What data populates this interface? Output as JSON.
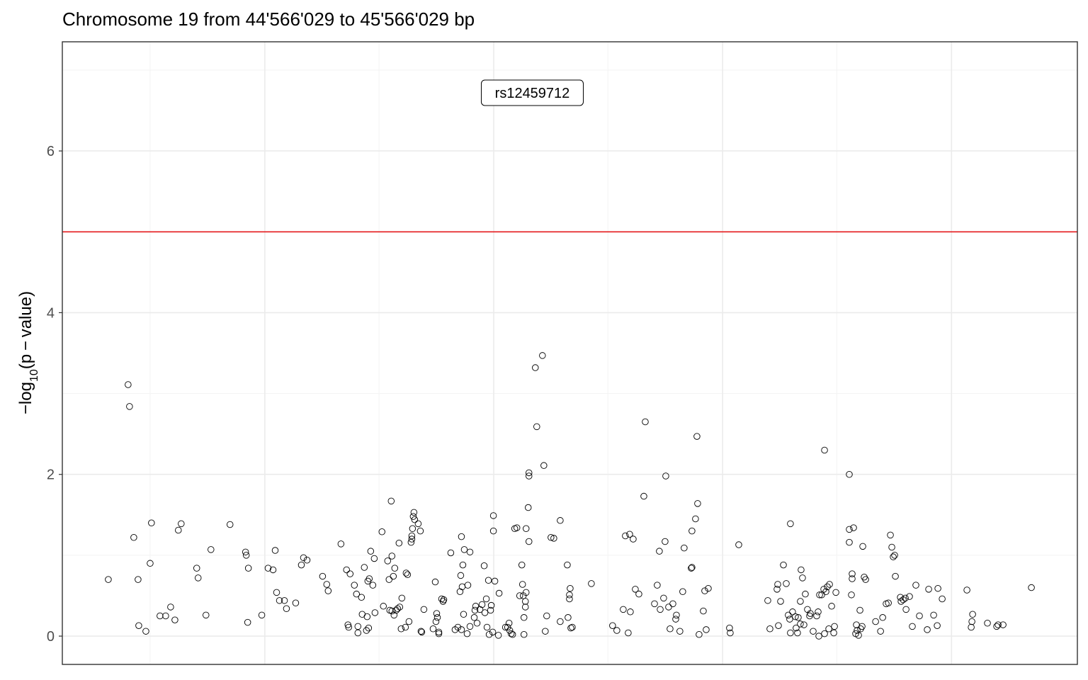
{
  "chart_data": {
    "type": "scatter",
    "title": "Chromosome 19 from 44'566'029 to 45'566'029 bp",
    "ylabel": "-log10(p-value)",
    "ylabel_parts": {
      "minus": "−",
      "log": "log",
      "base": "10",
      "arg": "(p − value)"
    },
    "xlabel": "",
    "xlim": [
      0,
      1000000
    ],
    "ylim": [
      -0.35,
      7.35
    ],
    "y_ticks": [
      0,
      2,
      4,
      6
    ],
    "x_gridlines": [
      86500,
      312000,
      537500,
      763000
    ],
    "x_major_gridlines": [
      199500,
      425000,
      650500,
      876000
    ],
    "grid": true,
    "threshold": {
      "y": 5,
      "color": "#e41a1c"
    },
    "annotation": {
      "label": "rs12459712",
      "x": 496500,
      "y": 7.0
    },
    "colors": {
      "panel_border": "#333333",
      "grid_major": "#ebebeb",
      "grid_minor": "#f3f3f3",
      "points": "#000000"
    },
    "points": [
      [
        45300,
        0.7
      ],
      [
        64800,
        3.11
      ],
      [
        66200,
        2.84
      ],
      [
        70400,
        1.22
      ],
      [
        74600,
        0.7
      ],
      [
        75300,
        0.13
      ],
      [
        82300,
        0.06
      ],
      [
        86500,
        0.9
      ],
      [
        87800,
        1.4
      ],
      [
        96200,
        0.25
      ],
      [
        101800,
        0.25
      ],
      [
        106700,
        0.36
      ],
      [
        110900,
        0.2
      ],
      [
        114300,
        1.31
      ],
      [
        117100,
        1.39
      ],
      [
        132400,
        0.84
      ],
      [
        133800,
        0.72
      ],
      [
        141500,
        0.26
      ],
      [
        146400,
        1.07
      ],
      [
        165200,
        1.38
      ],
      [
        180500,
        1.04
      ],
      [
        181200,
        1.0
      ],
      [
        182600,
        0.17
      ],
      [
        183300,
        0.84
      ],
      [
        196500,
        0.26
      ],
      [
        202700,
        0.84
      ],
      [
        207600,
        0.82
      ],
      [
        209700,
        1.06
      ],
      [
        211100,
        0.54
      ],
      [
        213900,
        0.44
      ],
      [
        218800,
        0.44
      ],
      [
        220800,
        0.34
      ],
      [
        229900,
        0.41
      ],
      [
        235500,
        0.88
      ],
      [
        237600,
        0.97
      ],
      [
        241100,
        0.94
      ],
      [
        256400,
        0.74
      ],
      [
        260500,
        0.64
      ],
      [
        261900,
        0.56
      ],
      [
        274500,
        1.14
      ],
      [
        280000,
        0.82
      ],
      [
        281400,
        0.14
      ],
      [
        282100,
        0.11
      ],
      [
        283500,
        0.77
      ],
      [
        287700,
        0.63
      ],
      [
        289800,
        0.52
      ],
      [
        291200,
        0.04
      ],
      [
        291200,
        0.12
      ],
      [
        294700,
        0.48
      ],
      [
        295400,
        0.27
      ],
      [
        297500,
        0.85
      ],
      [
        299600,
        0.07
      ],
      [
        300300,
        0.24
      ],
      [
        301000,
        0.68
      ],
      [
        301700,
        0.1
      ],
      [
        302400,
        0.71
      ],
      [
        303800,
        1.05
      ],
      [
        305900,
        0.63
      ],
      [
        307300,
        0.96
      ],
      [
        308000,
        0.29
      ],
      [
        314900,
        1.29
      ],
      [
        316300,
        0.37
      ],
      [
        320500,
        0.93
      ],
      [
        321900,
        0.7
      ],
      [
        322600,
        0.32
      ],
      [
        324000,
        1.67
      ],
      [
        324700,
        0.99
      ],
      [
        324700,
        0.31
      ],
      [
        326100,
        0.74
      ],
      [
        326800,
        0.26
      ],
      [
        327500,
        0.84
      ],
      [
        328900,
        0.32
      ],
      [
        330300,
        0.34
      ],
      [
        331700,
        1.15
      ],
      [
        332400,
        0.36
      ],
      [
        333800,
        0.09
      ],
      [
        334500,
        0.47
      ],
      [
        338000,
        0.11
      ],
      [
        338700,
        0.78
      ],
      [
        340100,
        0.76
      ],
      [
        341500,
        0.18
      ],
      [
        343600,
        1.16
      ],
      [
        344300,
        1.2
      ],
      [
        344300,
        1.24
      ],
      [
        345000,
        1.33
      ],
      [
        345700,
        1.48
      ],
      [
        346400,
        1.53
      ],
      [
        347100,
        1.44
      ],
      [
        350600,
        1.39
      ],
      [
        352700,
        1.3
      ],
      [
        353400,
        0.06
      ],
      [
        354100,
        0.05
      ],
      [
        356200,
        0.33
      ],
      [
        365300,
        0.09
      ],
      [
        367400,
        0.67
      ],
      [
        368100,
        0.18
      ],
      [
        368800,
        0.28
      ],
      [
        369500,
        0.23
      ],
      [
        370900,
        0.05
      ],
      [
        370900,
        0.03
      ],
      [
        373700,
        0.46
      ],
      [
        375100,
        0.43
      ],
      [
        375800,
        0.45
      ],
      [
        382700,
        1.03
      ],
      [
        386900,
        0.08
      ],
      [
        389700,
        0.11
      ],
      [
        391800,
        0.55
      ],
      [
        392500,
        0.75
      ],
      [
        393200,
        1.23
      ],
      [
        393200,
        0.08
      ],
      [
        393900,
        0.61
      ],
      [
        394600,
        0.88
      ],
      [
        395300,
        0.27
      ],
      [
        396000,
        1.07
      ],
      [
        398800,
        0.03
      ],
      [
        399500,
        0.63
      ],
      [
        401600,
        1.04
      ],
      [
        401600,
        0.12
      ],
      [
        405800,
        0.23
      ],
      [
        406500,
        0.32
      ],
      [
        407200,
        0.37
      ],
      [
        408600,
        0.16
      ],
      [
        411400,
        0.33
      ],
      [
        413500,
        0.39
      ],
      [
        415600,
        0.87
      ],
      [
        416300,
        0.29
      ],
      [
        417700,
        0.46
      ],
      [
        418400,
        0.11
      ],
      [
        419800,
        0.69
      ],
      [
        420500,
        0.02
      ],
      [
        421900,
        0.32
      ],
      [
        422600,
        0.38
      ],
      [
        424000,
        0.05
      ],
      [
        424700,
        1.49
      ],
      [
        424700,
        1.3
      ],
      [
        426100,
        0.68
      ],
      [
        429600,
        0.01
      ],
      [
        430300,
        0.53
      ],
      [
        436600,
        0.11
      ],
      [
        438700,
        0.11
      ],
      [
        440100,
        0.16
      ],
      [
        440800,
        0.07
      ],
      [
        442200,
        0.03
      ],
      [
        443600,
        0.02
      ],
      [
        445700,
        1.33
      ],
      [
        447800,
        1.34
      ],
      [
        450600,
        0.5
      ],
      [
        452700,
        0.88
      ],
      [
        453400,
        0.64
      ],
      [
        454100,
        0.5
      ],
      [
        454800,
        0.23
      ],
      [
        454800,
        0.02
      ],
      [
        456200,
        0.36
      ],
      [
        456200,
        0.43
      ],
      [
        456900,
        0.54
      ],
      [
        456900,
        1.33
      ],
      [
        459000,
        1.59
      ],
      [
        459700,
        1.17
      ],
      [
        459700,
        1.98
      ],
      [
        459700,
        2.02
      ],
      [
        466000,
        3.32
      ],
      [
        467400,
        2.59
      ],
      [
        473000,
        3.47
      ],
      [
        474400,
        2.11
      ],
      [
        475800,
        0.06
      ],
      [
        477200,
        0.25
      ],
      [
        481400,
        1.22
      ],
      [
        484200,
        1.21
      ],
      [
        490500,
        1.43
      ],
      [
        490500,
        0.18
      ],
      [
        497500,
        0.88
      ],
      [
        498200,
        0.23
      ],
      [
        499600,
        0.46
      ],
      [
        499600,
        0.51
      ],
      [
        500300,
        0.59
      ],
      [
        501000,
        0.1
      ],
      [
        502400,
        0.11
      ],
      [
        521200,
        0.65
      ],
      [
        542100,
        0.13
      ],
      [
        546300,
        0.07
      ],
      [
        552600,
        0.33
      ],
      [
        554700,
        1.24
      ],
      [
        557500,
        0.04
      ],
      [
        558900,
        1.26
      ],
      [
        559600,
        0.3
      ],
      [
        562400,
        1.2
      ],
      [
        564500,
        0.58
      ],
      [
        568000,
        0.52
      ],
      [
        572900,
        1.73
      ],
      [
        574300,
        2.65
      ],
      [
        583400,
        0.4
      ],
      [
        586100,
        0.63
      ],
      [
        588200,
        1.05
      ],
      [
        589000,
        0.33
      ],
      [
        592400,
        0.47
      ],
      [
        593800,
        1.17
      ],
      [
        594500,
        1.98
      ],
      [
        597300,
        0.36
      ],
      [
        598700,
        0.09
      ],
      [
        601500,
        0.4
      ],
      [
        604300,
        0.21
      ],
      [
        605000,
        0.26
      ],
      [
        608400,
        0.06
      ],
      [
        611200,
        0.55
      ],
      [
        612600,
        1.09
      ],
      [
        619600,
        0.84
      ],
      [
        620300,
        1.3
      ],
      [
        620300,
        0.85
      ],
      [
        623800,
        1.45
      ],
      [
        625200,
        2.47
      ],
      [
        625900,
        1.64
      ],
      [
        627300,
        0.02
      ],
      [
        631500,
        0.31
      ],
      [
        632900,
        0.56
      ],
      [
        634300,
        0.08
      ],
      [
        636400,
        0.59
      ],
      [
        657300,
        0.1
      ],
      [
        658000,
        0.04
      ],
      [
        666400,
        1.13
      ],
      [
        695000,
        0.44
      ],
      [
        697100,
        0.09
      ],
      [
        704100,
        0.58
      ],
      [
        704800,
        0.64
      ],
      [
        705500,
        0.13
      ],
      [
        707600,
        0.43
      ],
      [
        710400,
        0.88
      ],
      [
        713200,
        0.65
      ],
      [
        715200,
        0.26
      ],
      [
        716600,
        0.21
      ],
      [
        717300,
        0.04
      ],
      [
        717300,
        1.39
      ],
      [
        719400,
        0.3
      ],
      [
        722200,
        0.24
      ],
      [
        722900,
        0.1
      ],
      [
        724300,
        0.04
      ],
      [
        725000,
        0.23
      ],
      [
        727100,
        0.43
      ],
      [
        727100,
        0.15
      ],
      [
        727800,
        0.82
      ],
      [
        729200,
        0.72
      ],
      [
        730600,
        0.14
      ],
      [
        732000,
        0.52
      ],
      [
        734100,
        0.33
      ],
      [
        736200,
        0.25
      ],
      [
        736900,
        0.28
      ],
      [
        739700,
        0.06
      ],
      [
        743200,
        0.25
      ],
      [
        744600,
        0.3
      ],
      [
        745300,
        0.0
      ],
      [
        746000,
        0.51
      ],
      [
        748100,
        0.51
      ],
      [
        750200,
        0.58
      ],
      [
        750900,
        2.3
      ],
      [
        750900,
        0.03
      ],
      [
        752300,
        0.55
      ],
      [
        753700,
        0.61
      ],
      [
        755100,
        0.09
      ],
      [
        755800,
        0.64
      ],
      [
        757900,
        0.37
      ],
      [
        760000,
        0.04
      ],
      [
        760700,
        0.12
      ],
      [
        762100,
        0.54
      ],
      [
        775300,
        2.0
      ],
      [
        775300,
        1.32
      ],
      [
        775300,
        1.16
      ],
      [
        777400,
        0.51
      ],
      [
        778100,
        0.77
      ],
      [
        778100,
        0.71
      ],
      [
        779500,
        1.34
      ],
      [
        781600,
        0.03
      ],
      [
        782300,
        0.14
      ],
      [
        783000,
        0.07
      ],
      [
        784400,
        0.01
      ],
      [
        785800,
        0.32
      ],
      [
        786500,
        0.09
      ],
      [
        787900,
        0.12
      ],
      [
        788600,
        1.11
      ],
      [
        790000,
        0.73
      ],
      [
        791400,
        0.7
      ],
      [
        801200,
        0.18
      ],
      [
        806100,
        0.06
      ],
      [
        808200,
        0.23
      ],
      [
        811600,
        0.4
      ],
      [
        813800,
        0.41
      ],
      [
        815800,
        1.25
      ],
      [
        817200,
        1.1
      ],
      [
        818600,
        0.98
      ],
      [
        820000,
        1.0
      ],
      [
        820700,
        0.74
      ],
      [
        825600,
        0.48
      ],
      [
        826300,
        0.43
      ],
      [
        828400,
        0.45
      ],
      [
        830500,
        0.47
      ],
      [
        831200,
        0.33
      ],
      [
        834600,
        0.49
      ],
      [
        837400,
        0.12
      ],
      [
        840900,
        0.63
      ],
      [
        844400,
        0.25
      ],
      [
        852100,
        0.08
      ],
      [
        853500,
        0.58
      ],
      [
        858400,
        0.26
      ],
      [
        861900,
        0.13
      ],
      [
        862600,
        0.59
      ],
      [
        866800,
        0.46
      ],
      [
        891200,
        0.57
      ],
      [
        895400,
        0.11
      ],
      [
        896100,
        0.18
      ],
      [
        896800,
        0.27
      ],
      [
        911400,
        0.16
      ],
      [
        920500,
        0.12
      ],
      [
        921900,
        0.14
      ],
      [
        926800,
        0.14
      ],
      [
        954700,
        0.6
      ]
    ]
  }
}
